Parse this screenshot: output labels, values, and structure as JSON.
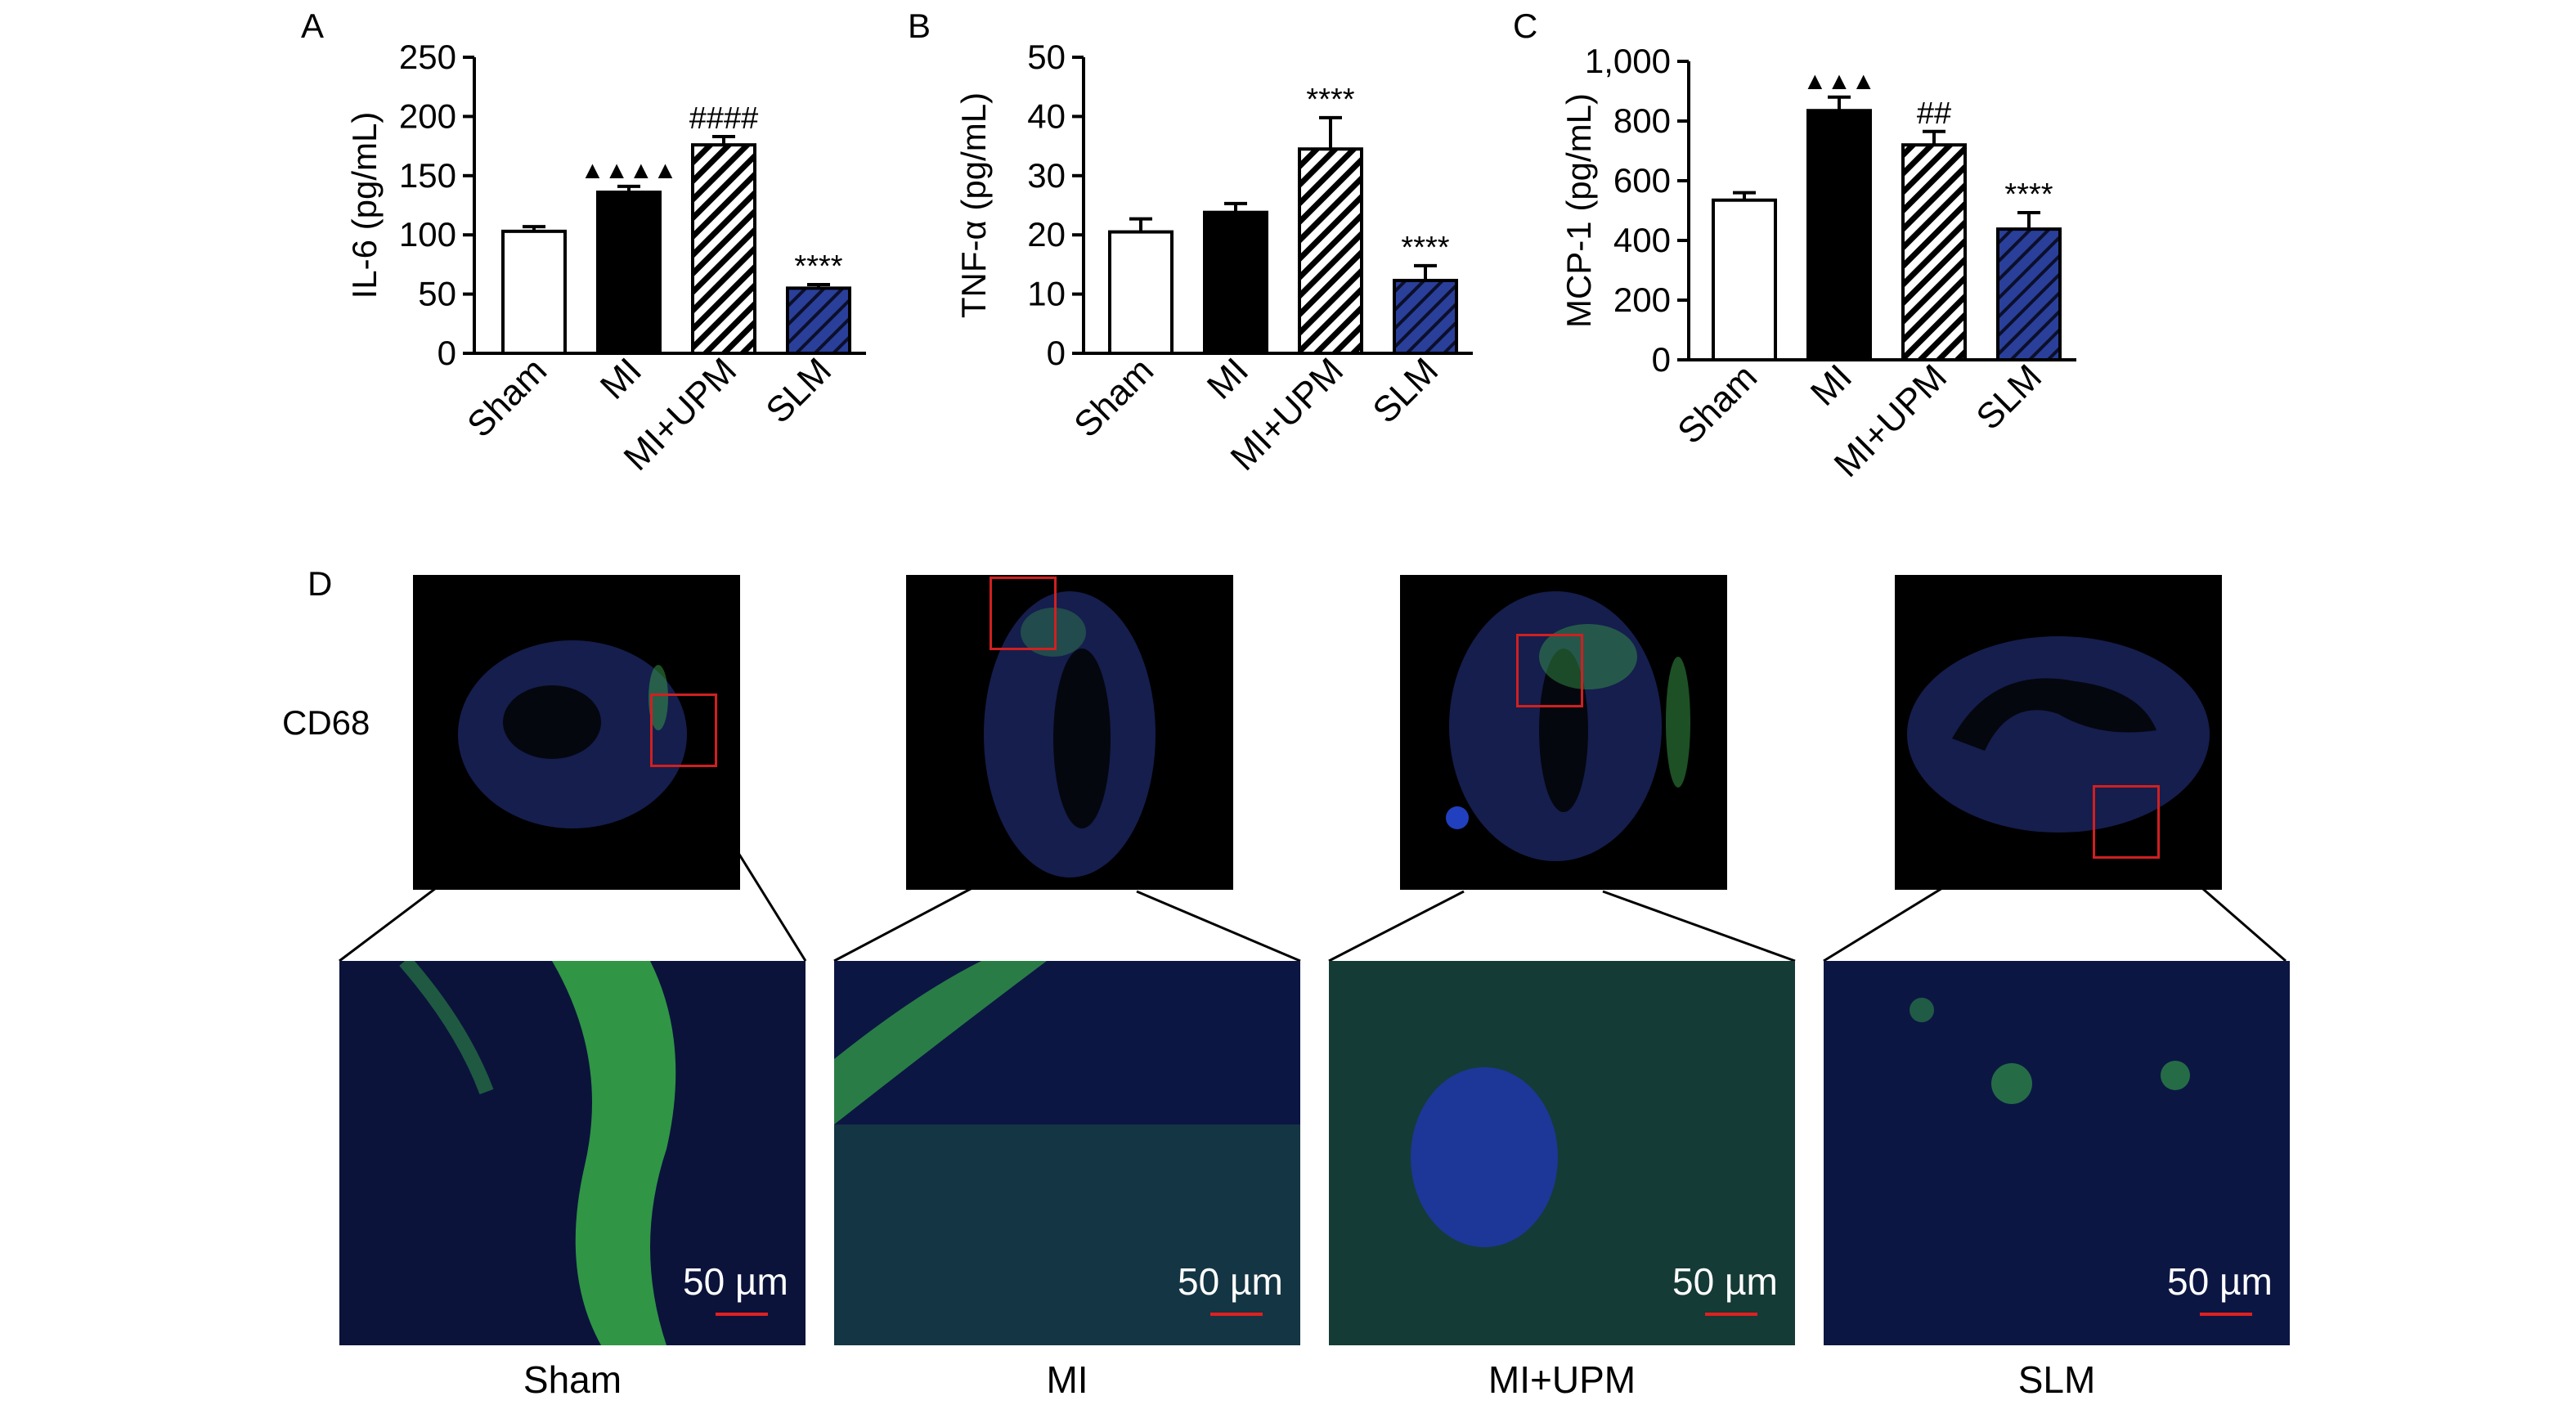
{
  "panels": {
    "a": "A",
    "b": "B",
    "c": "C",
    "d": "D"
  },
  "chart_data": [
    {
      "type": "bar",
      "panel": "A",
      "ylabel": "IL-6 (pg/mL)",
      "categories": [
        "Sham",
        "MI",
        "MI+UPM",
        "SLM"
      ],
      "values": [
        103,
        136,
        176,
        55
      ],
      "errors": [
        4,
        5,
        7,
        3
      ],
      "yticks": [
        "0",
        "50",
        "100",
        "150",
        "200",
        "250"
      ],
      "ylim": [
        0,
        250
      ],
      "annotations": [
        "",
        "▲▲▲▲",
        "####",
        "****"
      ]
    },
    {
      "type": "bar",
      "panel": "B",
      "ylabel": "TNF-α (pg/mL)",
      "categories": [
        "Sham",
        "MI",
        "MI+UPM",
        "SLM"
      ],
      "values": [
        20.5,
        23.8,
        34.5,
        12.3
      ],
      "errors": [
        2.2,
        1.5,
        5.3,
        2.5
      ],
      "yticks": [
        "0",
        "10",
        "20",
        "30",
        "40",
        "50"
      ],
      "ylim": [
        0,
        50
      ],
      "annotations": [
        "",
        "",
        "****",
        "****"
      ]
    },
    {
      "type": "bar",
      "panel": "C",
      "ylabel": "MCP-1 (pg/mL)",
      "categories": [
        "Sham",
        "MI",
        "MI+UPM",
        "SLM"
      ],
      "values": [
        535,
        835,
        720,
        438
      ],
      "errors": [
        25,
        45,
        45,
        55
      ],
      "yticks": [
        "0",
        "200",
        "400",
        "600",
        "800",
        "1,000"
      ],
      "ylim": [
        0,
        1000
      ],
      "annotations": [
        "",
        "▲▲▲",
        "##",
        "****"
      ]
    }
  ],
  "colors": {
    "sham": "#ffffff",
    "mi": "#000000",
    "upm_hatch": "#000000",
    "slm_fill": "#2a3f9a",
    "roi": "#d02020",
    "scalebar": "#e02020"
  },
  "panel_d": {
    "marker": "CD68",
    "groups": [
      "Sham",
      "MI",
      "MI+UPM",
      "SLM"
    ],
    "scalebar": "50 µm"
  }
}
